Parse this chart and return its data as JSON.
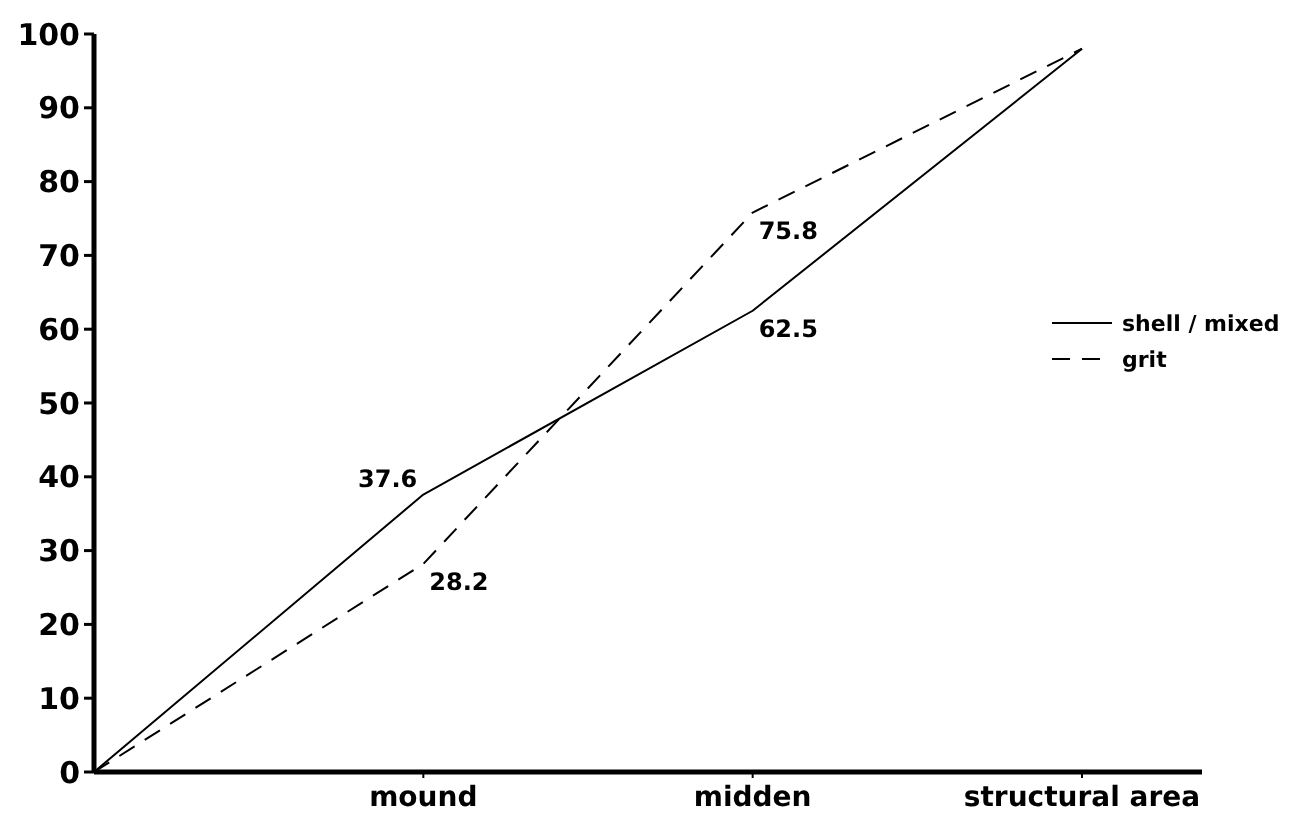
{
  "chart_data": {
    "type": "line",
    "categories": [
      null,
      "mound",
      "midden",
      "structural area"
    ],
    "ylim": [
      0,
      100
    ],
    "yticks": [
      0,
      10,
      20,
      30,
      40,
      50,
      60,
      70,
      80,
      90,
      100
    ],
    "grid": false,
    "legend": "right",
    "marker": "none",
    "series": [
      {
        "name": "shell / mixed",
        "color": "#000000",
        "line_style": "solid",
        "values": [
          0,
          37.6,
          62.5,
          98
        ],
        "value_labels": [
          null,
          "37.6",
          "62.5",
          null
        ]
      },
      {
        "name": "grit",
        "color": "#000000",
        "line_style": "dashed",
        "values": [
          0,
          28.2,
          75.8,
          98
        ],
        "value_labels": [
          null,
          "28.2",
          "75.8",
          null
        ]
      }
    ]
  }
}
